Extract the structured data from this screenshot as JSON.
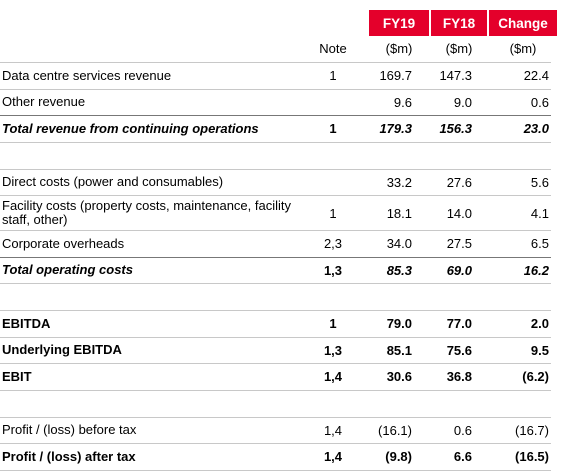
{
  "header": {
    "columns": {
      "fy19": "FY19",
      "fy18": "FY18",
      "change": "Change"
    },
    "note": "Note",
    "units": [
      "($m)",
      "($m)",
      "($m)"
    ]
  },
  "groups": [
    [
      {
        "label": "Data centre services revenue",
        "note": "1",
        "fy19": "169.7",
        "fy18": "147.3",
        "change": "22.4",
        "style": "plain"
      },
      {
        "label": "Other revenue",
        "note": null,
        "fy19": "9.6",
        "fy18": "9.0",
        "change": "0.6",
        "style": "plain"
      },
      {
        "label": "Total revenue from continuing operations",
        "note": "1",
        "fy19": "179.3",
        "fy18": "156.3",
        "change": "23.0",
        "style": "total"
      }
    ],
    [
      {
        "label": "Direct costs (power and consumables)",
        "note": null,
        "fy19": "33.2",
        "fy18": "27.6",
        "change": "5.6",
        "style": "plain"
      },
      {
        "label": "Facility costs (property costs, maintenance, facility staff, other)",
        "note": "1",
        "fy19": "18.1",
        "fy18": "14.0",
        "change": "4.1",
        "style": "plain"
      },
      {
        "label": "Corporate overheads",
        "note": "2,3",
        "fy19": "34.0",
        "fy18": "27.5",
        "change": "6.5",
        "style": "plain"
      },
      {
        "label": "Total operating costs",
        "note": "1,3",
        "fy19": "85.3",
        "fy18": "69.0",
        "change": "16.2",
        "style": "total"
      }
    ],
    [
      {
        "label": "EBITDA",
        "note": "1",
        "fy19": "79.0",
        "fy18": "77.0",
        "change": "2.0",
        "style": "bold"
      },
      {
        "label": "Underlying EBITDA",
        "note": "1,3",
        "fy19": "85.1",
        "fy18": "75.6",
        "change": "9.5",
        "style": "bold"
      },
      {
        "label": "EBIT",
        "note": "1,4",
        "fy19": "30.6",
        "fy18": "36.8",
        "change": "(6.2)",
        "style": "bold"
      }
    ],
    [
      {
        "label": "Profit / (loss) before tax",
        "note": "1,4",
        "fy19": "(16.1)",
        "fy18": "0.6",
        "change": "(16.7)",
        "style": "plain"
      },
      {
        "label": "Profit / (loss) after tax",
        "note": "1,4",
        "fy19": "(9.8)",
        "fy18": "6.6",
        "change": "(16.5)",
        "style": "bold"
      }
    ]
  ]
}
